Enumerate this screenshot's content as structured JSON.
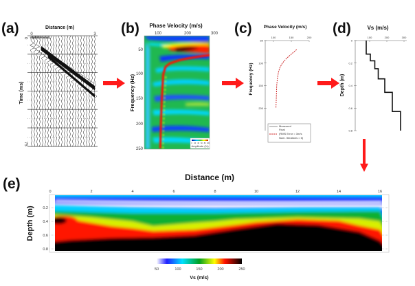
{
  "colors": {
    "arrow": "#ff1a1a",
    "curve": "#cc2222"
  },
  "panels": {
    "a": {
      "label": "(a)",
      "xlabel": "Distance (m)",
      "ylabel": "Time (ms)",
      "xticks": [
        "0",
        "3"
      ],
      "xlim": [
        0,
        3
      ],
      "yticks": [
        "0",
        "75"
      ],
      "ylim": [
        0,
        75
      ]
    },
    "b": {
      "label": "(b)",
      "xlabel": "Phase Velocity (m/s)",
      "ylabel": "Frequency (Hz)",
      "xticks": [
        "100",
        "200",
        "300"
      ],
      "yticks": [
        "50",
        "100",
        "150",
        "200",
        "250"
      ],
      "legend_title": "Amplitude (%)",
      "legend_ticks": [
        "0",
        "20",
        "40",
        "60",
        "80",
        "100"
      ]
    },
    "c": {
      "label": "(c)",
      "xlabel": "Phase Velocity (m/s)",
      "ylabel": "Frequency (Hz)",
      "xticks": [
        "100",
        "150",
        "200"
      ],
      "yticks": [
        "50",
        "100",
        "150",
        "200"
      ],
      "legend": [
        "Measured",
        "Final",
        "(RMS Error = 3m/s",
        "Num. Iterations = 5)"
      ],
      "curve": {
        "frequency": [
          70,
          80,
          90,
          100,
          110,
          120,
          135,
          150,
          175,
          200
        ],
        "velocity": [
          165,
          150,
          136,
          125,
          118,
          114,
          111,
          109,
          108,
          107
        ]
      }
    },
    "d": {
      "label": "(d)",
      "xlabel": "Vs (m/s)",
      "ylabel": "Depth (m)",
      "xticks": [
        "100",
        "200",
        "300"
      ],
      "yticks": [
        "0",
        "0.2",
        "0.4",
        "0.6",
        "0.8"
      ],
      "profile": {
        "depth_top": [
          0,
          0.12,
          0.18,
          0.25,
          0.34,
          0.46,
          0.63
        ],
        "depth_bottom": [
          0.12,
          0.18,
          0.25,
          0.34,
          0.46,
          0.63,
          0.8
        ],
        "vs": [
          80,
          104,
          130,
          150,
          188,
          232,
          280
        ]
      }
    },
    "e": {
      "label": "(e)",
      "xlabel": "Distance (m)",
      "ylabel": "Depth (m)",
      "xticks": [
        "0",
        "2",
        "4",
        "6",
        "8",
        "10",
        "12",
        "14",
        "16"
      ],
      "yticks": [
        "0.2",
        "0.4",
        "0.6",
        "0.8"
      ],
      "colorbar_label": "Vs (m/s)",
      "colorbar_ticks": [
        "50",
        "100",
        "150",
        "200",
        "250"
      ]
    }
  }
}
